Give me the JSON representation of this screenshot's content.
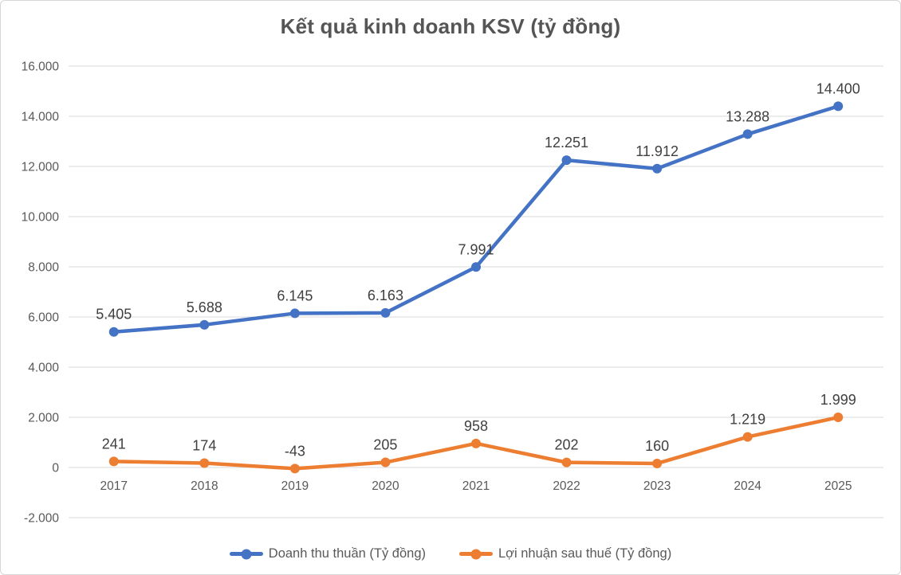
{
  "chart_data": {
    "type": "line",
    "title": "Kết quả kinh doanh KSV (tỷ đồng)",
    "categories": [
      "2017",
      "2018",
      "2019",
      "2020",
      "2021",
      "2022",
      "2023",
      "2024",
      "2025"
    ],
    "series": [
      {
        "name": "Doanh thu thuần (Tỷ đồng)",
        "color": "#4472C4",
        "values": [
          5405,
          5688,
          6145,
          6163,
          7991,
          12251,
          11912,
          13288,
          14400
        ],
        "labels": [
          "5.405",
          "5.688",
          "6.145",
          "6.163",
          "7.991",
          "12.251",
          "11.912",
          "13.288",
          "14.400"
        ]
      },
      {
        "name": "Lợi nhuận sau thuế (Tỷ đồng)",
        "color": "#ED7D31",
        "values": [
          241,
          174,
          -43,
          205,
          958,
          202,
          160,
          1219,
          1999
        ],
        "labels": [
          "241",
          "174",
          "-43",
          "205",
          "958",
          "202",
          "160",
          "1.219",
          "1.999"
        ]
      }
    ],
    "y_axis": {
      "min": -2000,
      "max": 16000,
      "step": 2000,
      "tick_labels": [
        "-2.000",
        "0",
        "2.000",
        "4.000",
        "6.000",
        "8.000",
        "10.000",
        "12.000",
        "14.000",
        "16.000"
      ]
    },
    "grid": true,
    "legend_position": "bottom",
    "colors": {
      "gridline": "#D9D9D9",
      "axis_text": "#595959",
      "data_label_text": "#404040",
      "title_text": "#555555"
    }
  }
}
